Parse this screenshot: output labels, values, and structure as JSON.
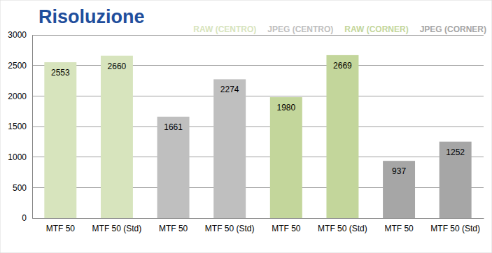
{
  "chart_data": {
    "type": "bar",
    "title": "Risoluzione",
    "categories": [
      "MTF 50",
      "MTF 50 (Std)",
      "MTF 50",
      "MTF 50 (Std)",
      "MTF 50",
      "MTF 50 (Std)",
      "MTF 50",
      "MTF 50 (Std)"
    ],
    "series": [
      {
        "name": "RAW (CENTRO)",
        "color": "#d7e4bd",
        "values": [
          2553,
          2660,
          null,
          null,
          null,
          null,
          null,
          null
        ]
      },
      {
        "name": "JPEG (CENTRO)",
        "color": "#bfbfbf",
        "values": [
          null,
          null,
          1661,
          2274,
          null,
          null,
          null,
          null
        ]
      },
      {
        "name": "RAW (CORNER)",
        "color": "#c3d69b",
        "values": [
          null,
          null,
          null,
          null,
          1980,
          2669,
          null,
          null
        ]
      },
      {
        "name": "JPEG (CORNER)",
        "color": "#a6a6a6",
        "values": [
          null,
          null,
          null,
          null,
          null,
          null,
          937,
          1252
        ]
      }
    ],
    "ylim": [
      0,
      3000
    ],
    "yticks": [
      0,
      500,
      1000,
      1500,
      2000,
      2500,
      3000
    ],
    "grid": true,
    "data_labels": true,
    "legend": "top-right"
  }
}
